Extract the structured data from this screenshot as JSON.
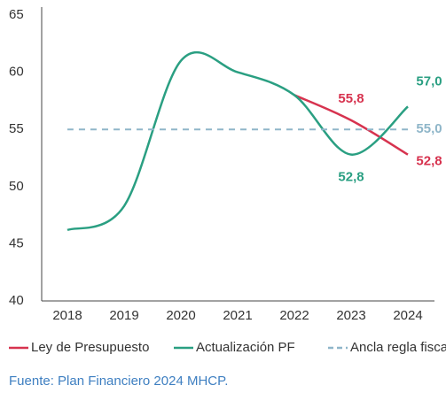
{
  "chart_data": {
    "type": "line",
    "categories": [
      "2018",
      "2019",
      "2020",
      "2021",
      "2022",
      "2023",
      "2024"
    ],
    "series": [
      {
        "name": "Ley de Presupuesto",
        "color": "#d7334f",
        "values": [
          null,
          null,
          null,
          null,
          58.0,
          55.8,
          52.8
        ],
        "value_labels": [
          null,
          null,
          null,
          null,
          null,
          "55,8",
          "52,8"
        ]
      },
      {
        "name": "Actualización PF",
        "color": "#2a9f82",
        "values": [
          46.2,
          48.3,
          61.0,
          60.0,
          58.0,
          52.8,
          57.0
        ],
        "value_labels": [
          null,
          null,
          null,
          null,
          null,
          "52,8",
          "57,0"
        ]
      },
      {
        "name": "Ancla regla fiscal",
        "color": "#8fb6c9",
        "dashed": true,
        "values": [
          55.0,
          55.0,
          55.0,
          55.0,
          55.0,
          55.0,
          55.0
        ],
        "value_labels": [
          null,
          null,
          null,
          null,
          null,
          null,
          "55,0"
        ]
      }
    ],
    "ylim": [
      40,
      65
    ],
    "yticks": [
      40,
      45,
      50,
      55,
      60,
      65
    ],
    "source": "Fuente: Plan Financiero 2024 MHCP."
  }
}
